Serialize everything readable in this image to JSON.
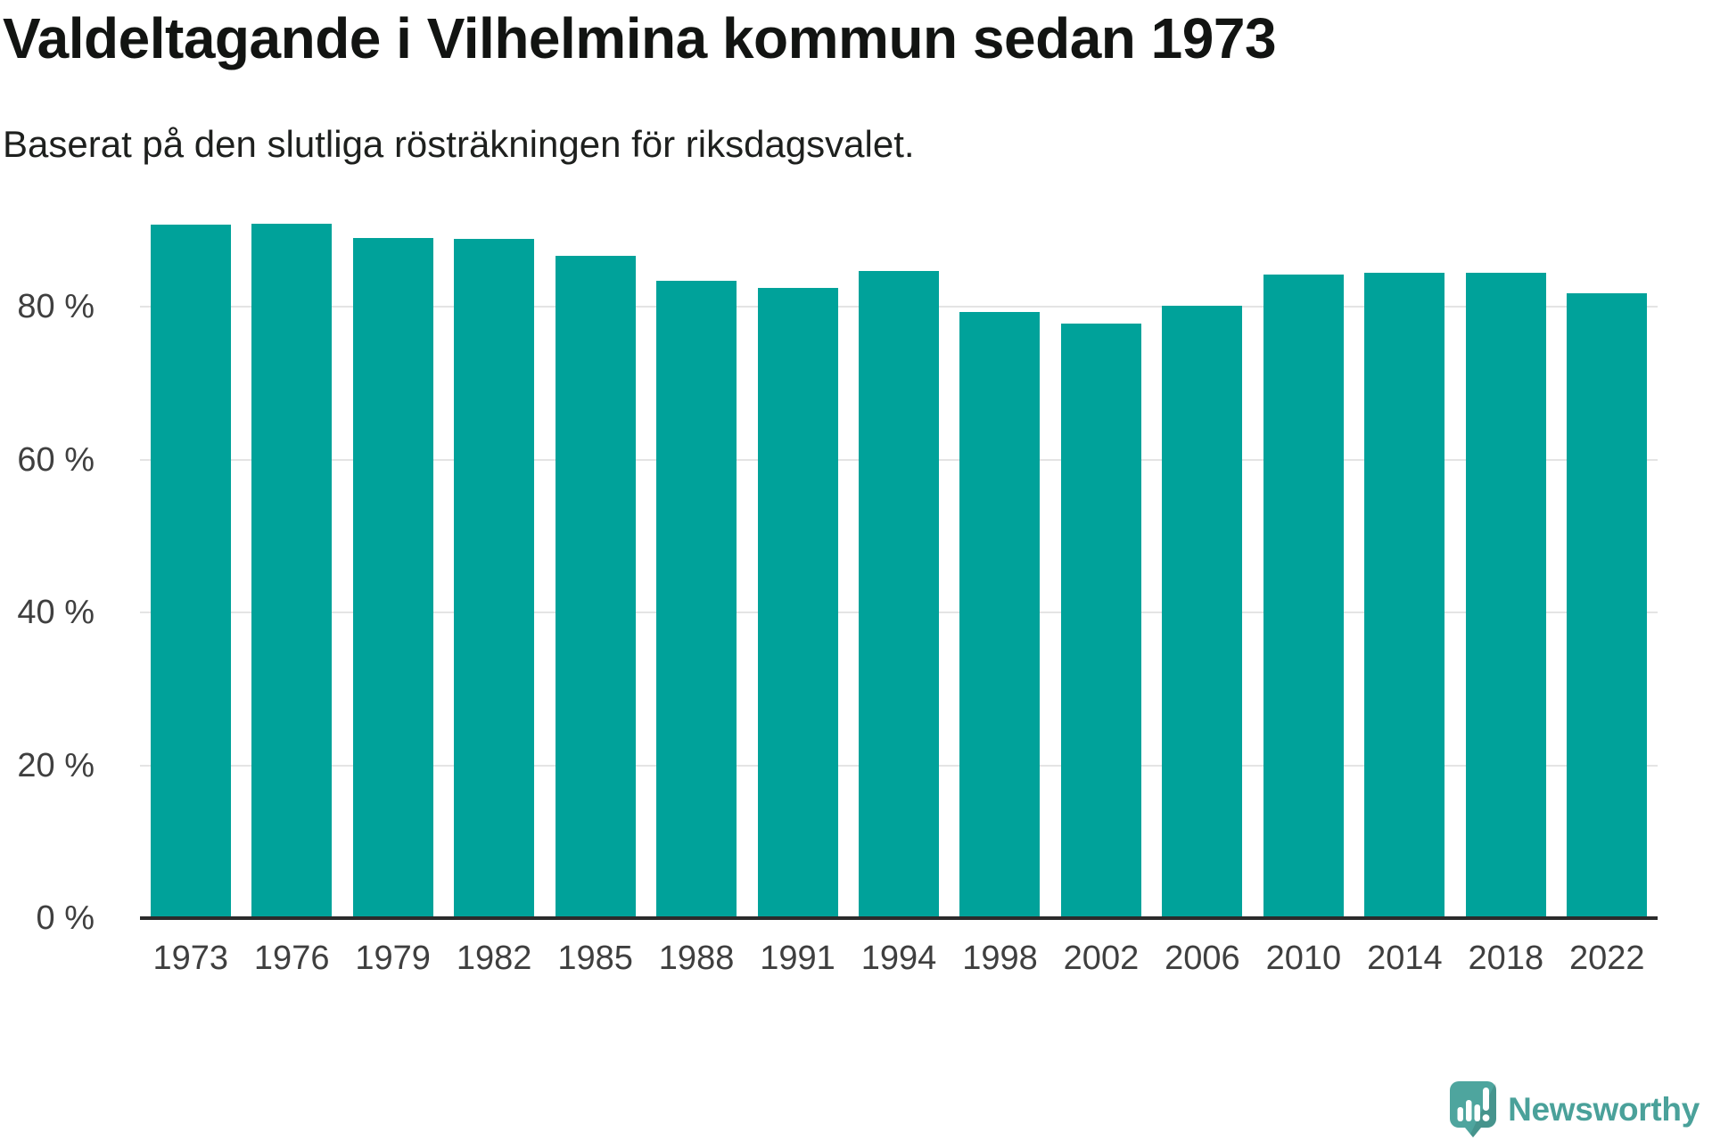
{
  "header": {
    "title": "Valdeltagande i Vilhelmina kommun sedan 1973",
    "subtitle": "Baserat på den slutliga rösträkningen för riksdagsvalet."
  },
  "chart_data": {
    "type": "bar",
    "title": "Valdeltagande i Vilhelmina kommun sedan 1973",
    "subtitle": "Baserat på den slutliga rösträkningen för riksdagsvalet.",
    "categories": [
      "1973",
      "1976",
      "1979",
      "1982",
      "1985",
      "1988",
      "1991",
      "1994",
      "1998",
      "2002",
      "2006",
      "2010",
      "2014",
      "2018",
      "2022"
    ],
    "values": [
      90.7,
      90.9,
      89.0,
      88.9,
      86.6,
      83.4,
      82.5,
      84.7,
      79.3,
      77.8,
      80.1,
      84.2,
      84.4,
      84.4,
      81.7
    ],
    "unit": "%",
    "yticks": [
      {
        "value": 0,
        "label": "0 %"
      },
      {
        "value": 20,
        "label": "20 %"
      },
      {
        "value": 40,
        "label": "40 %"
      },
      {
        "value": 60,
        "label": "60 %"
      },
      {
        "value": 80,
        "label": "80 %"
      }
    ],
    "ylim": [
      0,
      102.6
    ],
    "xlabel": "",
    "ylabel": "",
    "grid": true,
    "legend": false,
    "bar_color": "#00A29A"
  },
  "branding": {
    "logo_text": "Newsworthy",
    "logo_text_color": "#4AA19A",
    "logo_mark_color": "#4EA59E",
    "logo_mark_shade_color": "#46958E"
  }
}
